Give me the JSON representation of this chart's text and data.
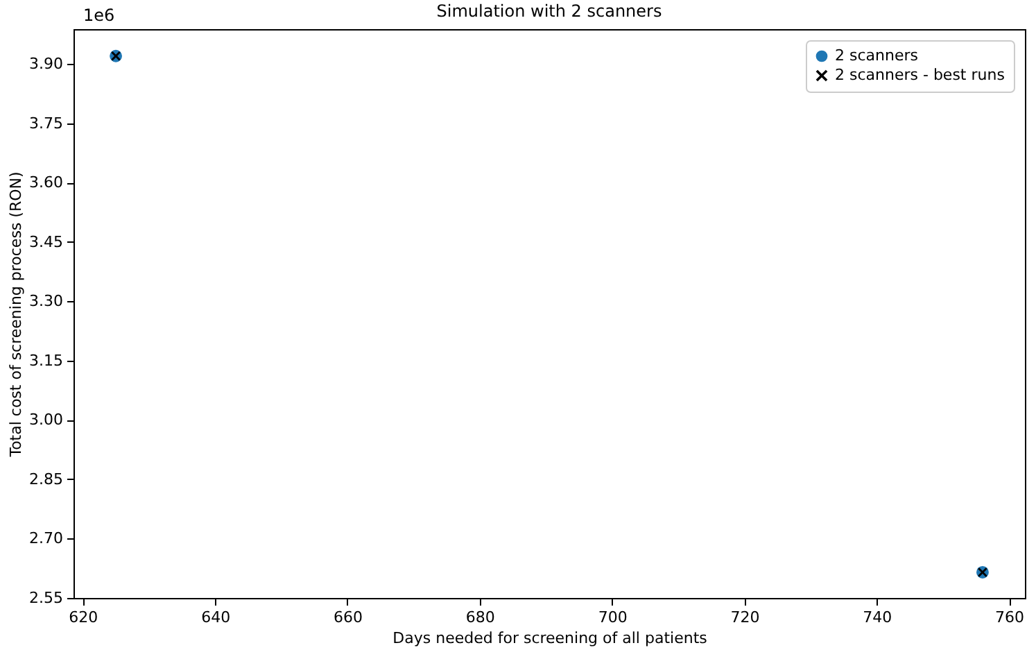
{
  "chart_data": {
    "type": "scatter",
    "title": "Simulation with 2 scanners",
    "xlabel": "Days needed for screening of all patients",
    "ylabel": "Total cost of screening process (RON)",
    "annotations": [
      "1e6"
    ],
    "x": [
      625,
      756
    ],
    "series": [
      {
        "name": "2 scanners",
        "color": "#1f77b4",
        "marker": "circle",
        "values": [
          3.92,
          2.615
        ]
      },
      {
        "name": "2 scanners - best runs",
        "color": "#000000",
        "marker": "cross",
        "values": [
          3.92,
          2.615
        ]
      }
    ],
    "xlim": [
      618.6,
      762.4
    ],
    "xticks": [
      620,
      640,
      660,
      680,
      700,
      720,
      740,
      760
    ],
    "ylim": [
      2.55,
      3.988
    ],
    "yticks": [
      {
        "value": 2.55,
        "label": "2.55"
      },
      {
        "value": 2.7,
        "label": "2.70"
      },
      {
        "value": 2.85,
        "label": "2.85"
      },
      {
        "value": 3.0,
        "label": "3.00"
      },
      {
        "value": 3.15,
        "label": "3.15"
      },
      {
        "value": 3.3,
        "label": "3.30"
      },
      {
        "value": 3.45,
        "label": "3.45"
      },
      {
        "value": 3.6,
        "label": "3.60"
      },
      {
        "value": 3.75,
        "label": "3.75"
      },
      {
        "value": 3.9,
        "label": "3.90"
      }
    ],
    "legend": "top right"
  }
}
